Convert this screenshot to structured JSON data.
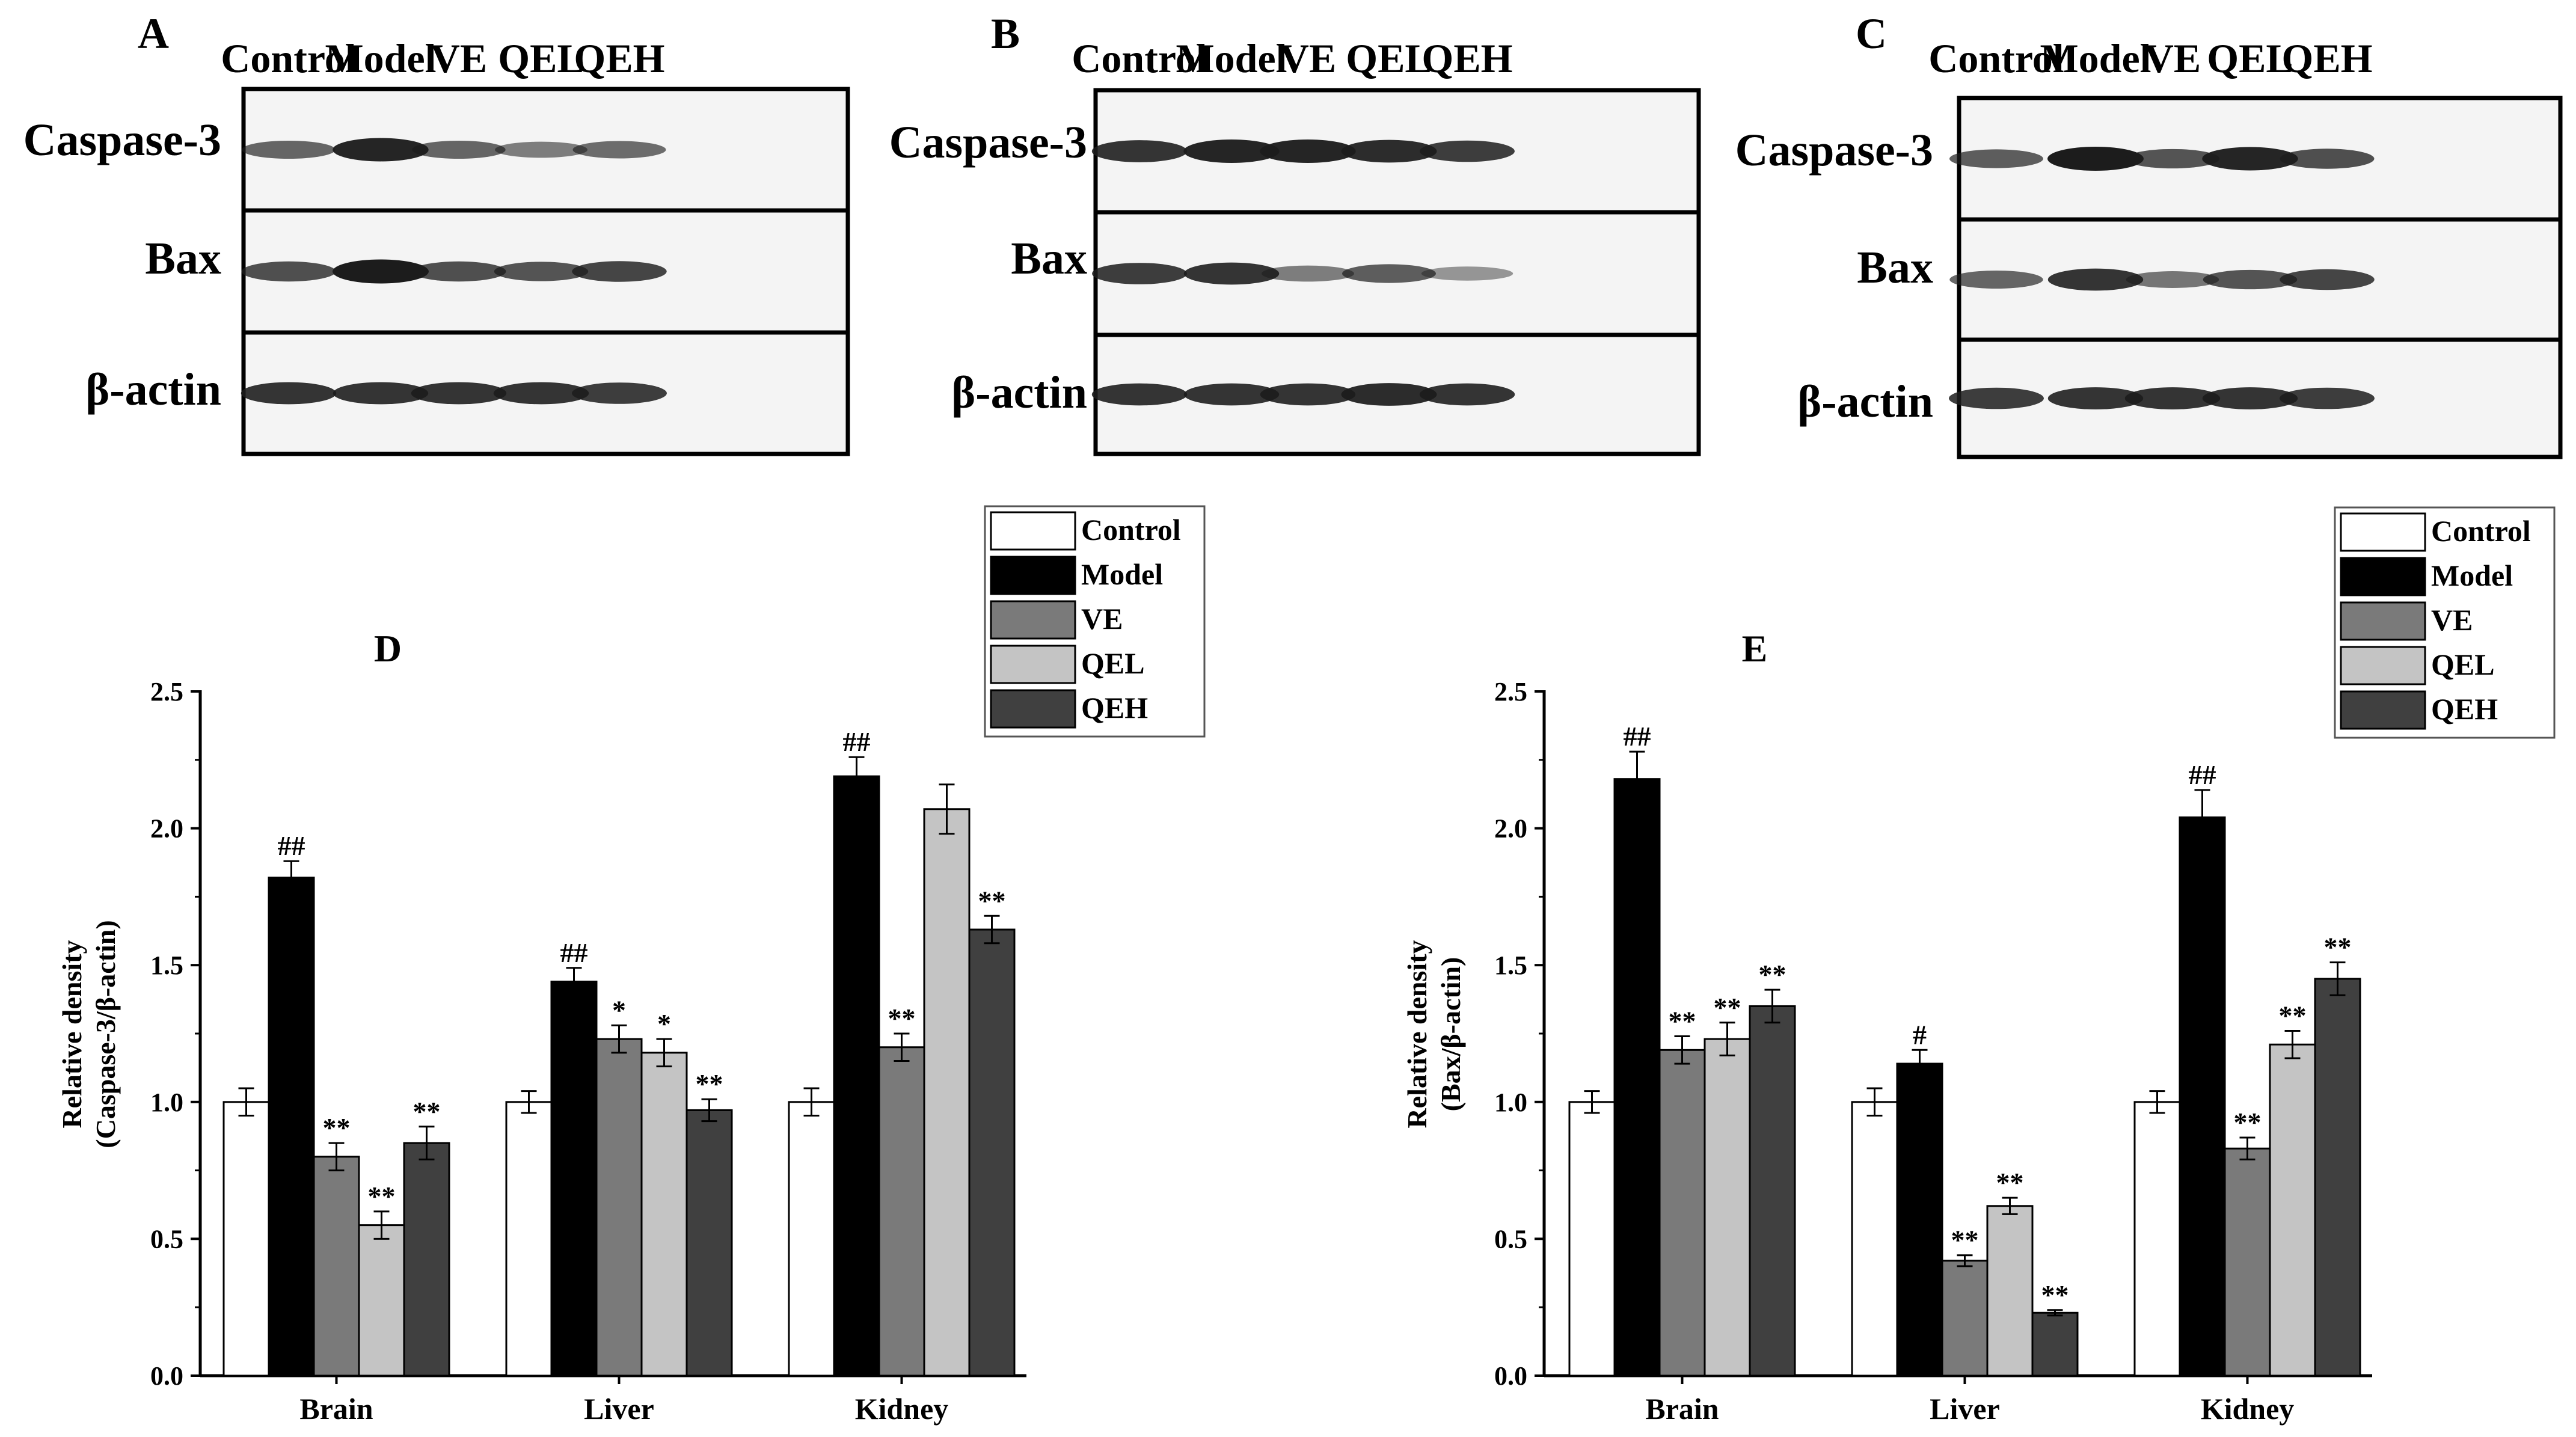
{
  "colors": {
    "Control": "#ffffff",
    "Model": "#000000",
    "VE": "#7a7a7a",
    "QEL": "#c4c4c4",
    "QEH": "#404040",
    "axis": "#000000",
    "blot_bg": "#f4f4f4",
    "band": "#1c1c1c"
  },
  "blots": [
    {
      "letter": "A",
      "lanes": [
        "Control",
        "Model",
        "VE",
        "QEL",
        "QEH"
      ],
      "rows": [
        {
          "label": "Caspase-3",
          "intensity": [
            0.55,
            0.95,
            0.55,
            0.4,
            0.5
          ]
        },
        {
          "label": "Bax",
          "intensity": [
            0.7,
            1.0,
            0.7,
            0.65,
            0.75
          ]
        },
        {
          "label": "β-actin",
          "intensity": [
            0.85,
            0.85,
            0.85,
            0.85,
            0.8
          ]
        }
      ]
    },
    {
      "letter": "B",
      "lanes": [
        "Control",
        "Model",
        "VE",
        "QEL",
        "QEH"
      ],
      "rows": [
        {
          "label": "Caspase-3",
          "intensity": [
            0.85,
            0.95,
            0.95,
            0.9,
            0.8
          ]
        },
        {
          "label": "Bax",
          "intensity": [
            0.8,
            0.85,
            0.4,
            0.6,
            0.25
          ]
        },
        {
          "label": "β-actin",
          "intensity": [
            0.85,
            0.85,
            0.85,
            0.9,
            0.85
          ]
        }
      ]
    },
    {
      "letter": "C",
      "lanes": [
        "Control",
        "Model",
        "VE",
        "QEL",
        "QEH"
      ],
      "rows": [
        {
          "label": "Caspase-3",
          "intensity": [
            0.6,
            1.0,
            0.65,
            0.95,
            0.7
          ]
        },
        {
          "label": "Bax",
          "intensity": [
            0.55,
            0.85,
            0.45,
            0.65,
            0.75
          ]
        },
        {
          "label": "β-actin",
          "intensity": [
            0.8,
            0.85,
            0.85,
            0.85,
            0.8
          ]
        }
      ]
    }
  ],
  "chart_data": [
    {
      "panel": "D",
      "type": "bar",
      "title": "D",
      "categories": [
        "Brain",
        "Liver",
        "Kidney"
      ],
      "xlabel": "",
      "ylabel": "Relative density",
      "ylabel2": "(Caspase-3/β-actin)",
      "ylim": [
        0,
        2.5
      ],
      "yticks": [
        "0.0",
        "0.5",
        "1.0",
        "1.5",
        "2.0",
        "2.5"
      ],
      "legend_position": "top-right",
      "series": [
        {
          "name": "Control",
          "values": [
            1.0,
            1.0,
            1.0
          ],
          "errors": [
            0.05,
            0.04,
            0.05
          ],
          "labels": [
            "",
            "",
            ""
          ]
        },
        {
          "name": "Model",
          "values": [
            1.82,
            1.44,
            2.19
          ],
          "errors": [
            0.06,
            0.05,
            0.07
          ],
          "labels": [
            "##",
            "##",
            "##"
          ]
        },
        {
          "name": "VE",
          "values": [
            0.8,
            1.23,
            1.2
          ],
          "errors": [
            0.05,
            0.05,
            0.05
          ],
          "labels": [
            "**",
            "*",
            "**"
          ]
        },
        {
          "name": "QEL",
          "values": [
            0.55,
            1.18,
            2.07
          ],
          "errors": [
            0.05,
            0.05,
            0.09
          ],
          "labels": [
            "**",
            "*",
            ""
          ]
        },
        {
          "name": "QEH",
          "values": [
            0.85,
            0.97,
            1.63
          ],
          "errors": [
            0.06,
            0.04,
            0.05
          ],
          "labels": [
            "**",
            "**",
            "**"
          ]
        }
      ]
    },
    {
      "panel": "E",
      "type": "bar",
      "title": "E",
      "categories": [
        "Brain",
        "Liver",
        "Kidney"
      ],
      "xlabel": "",
      "ylabel": "Relative density",
      "ylabel2": "(Bax/β-actin)",
      "ylim": [
        0,
        2.5
      ],
      "yticks": [
        "0.0",
        "0.5",
        "1.0",
        "1.5",
        "2.0",
        "2.5"
      ],
      "legend_position": "top-right",
      "series": [
        {
          "name": "Control",
          "values": [
            1.0,
            1.0,
            1.0
          ],
          "errors": [
            0.04,
            0.05,
            0.04
          ],
          "labels": [
            "",
            "",
            ""
          ]
        },
        {
          "name": "Model",
          "values": [
            2.18,
            1.14,
            2.04
          ],
          "errors": [
            0.1,
            0.05,
            0.1
          ],
          "labels": [
            "##",
            "#",
            "##"
          ]
        },
        {
          "name": "VE",
          "values": [
            1.19,
            0.42,
            0.83
          ],
          "errors": [
            0.05,
            0.02,
            0.04
          ],
          "labels": [
            "**",
            "**",
            "**"
          ]
        },
        {
          "name": "QEL",
          "values": [
            1.23,
            0.62,
            1.21
          ],
          "errors": [
            0.06,
            0.03,
            0.05
          ],
          "labels": [
            "**",
            "**",
            "**"
          ]
        },
        {
          "name": "QEH",
          "values": [
            1.35,
            0.23,
            1.45
          ],
          "errors": [
            0.06,
            0.01,
            0.06
          ],
          "labels": [
            "**",
            "**",
            "**"
          ]
        }
      ]
    }
  ]
}
